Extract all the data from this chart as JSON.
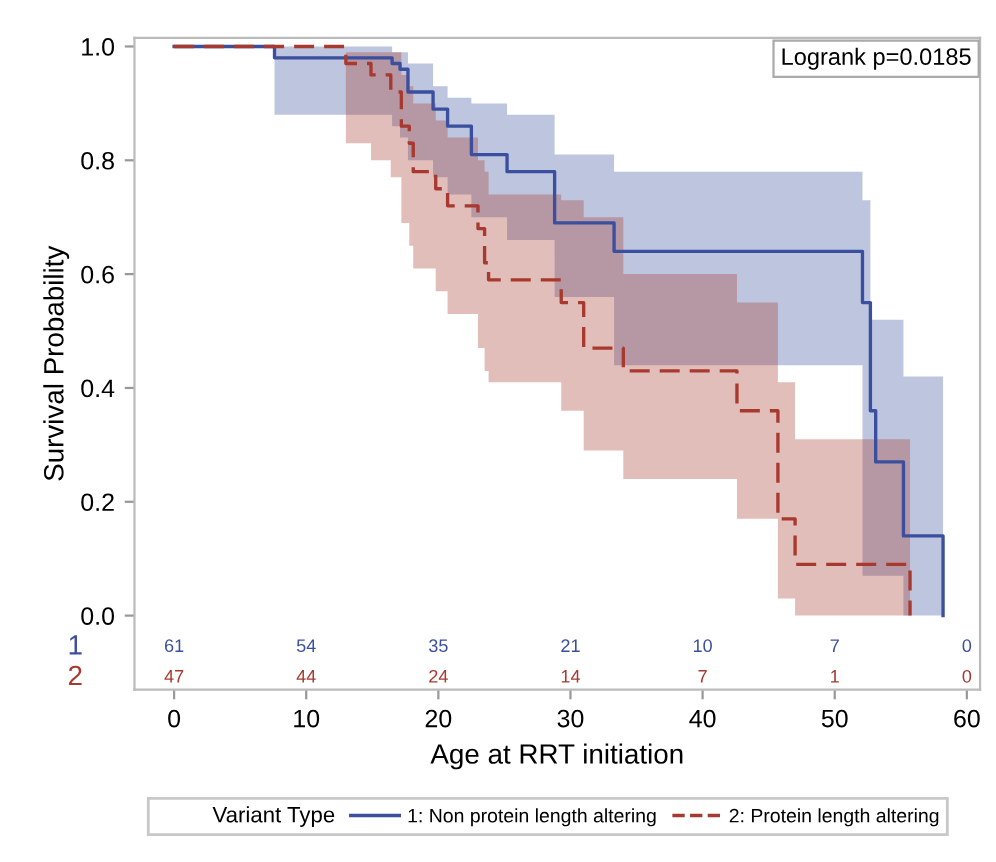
{
  "chart_data": {
    "type": "step",
    "xlabel": "Age at RRT initiation",
    "ylabel": "Survival Probability",
    "legend_title": "Variant Type",
    "xlim": [
      -3,
      61
    ],
    "xticks": [
      0,
      10,
      20,
      30,
      40,
      50,
      60
    ],
    "ylim": [
      -0.13,
      1.015
    ],
    "yticks": [
      {
        "value": 0,
        "label": "0.0"
      },
      0.2,
      0.4,
      0.6,
      0.8,
      {
        "value": 1,
        "label": "1.0"
      }
    ],
    "grid": false,
    "legend": "bottom",
    "series": [
      {
        "name": "1: Non protein length altering",
        "color": "#3a4f9e",
        "line_style": "solid",
        "x": [
          0,
          7.6,
          16.5,
          17.1,
          17.7,
          19.6,
          20.7,
          22.5,
          25.2,
          28.8,
          33.3,
          52.1,
          52.7,
          53.1,
          55.2,
          58.2
        ],
        "values": [
          1,
          0.98,
          0.97,
          0.96,
          0.92,
          0.89,
          0.86,
          0.81,
          0.78,
          0.69,
          0.64,
          0.55,
          0.36,
          0.27,
          0.14,
          0.0
        ],
        "lower": [
          1,
          0.88,
          0.86,
          0.84,
          0.8,
          0.77,
          0.74,
          0.7,
          0.66,
          0.56,
          0.44,
          0.07,
          0.07,
          0.07,
          0.0,
          0.0
        ],
        "upper": [
          1,
          1,
          0.99,
          0.99,
          0.97,
          0.93,
          0.91,
          0.9,
          0.88,
          0.81,
          0.78,
          0.73,
          0.52,
          0.52,
          0.42,
          0.0
        ]
      },
      {
        "name": "2: Protein length altering",
        "color": "#a8392f",
        "line_style": "dashed",
        "x": [
          0,
          13.0,
          14.9,
          16.4,
          17.2,
          17.8,
          18.1,
          19.8,
          20.7,
          23.0,
          23.5,
          23.8,
          29.3,
          31.0,
          34.0,
          42.6,
          45.7,
          47.0,
          55.7
        ],
        "values": [
          1,
          0.97,
          0.95,
          0.92,
          0.86,
          0.83,
          0.78,
          0.75,
          0.72,
          0.68,
          0.62,
          0.59,
          0.55,
          0.47,
          0.43,
          0.36,
          0.17,
          0.09,
          0.0
        ],
        "lower": [
          1,
          0.83,
          0.8,
          0.77,
          0.69,
          0.65,
          0.61,
          0.57,
          0.53,
          0.47,
          0.43,
          0.41,
          0.36,
          0.29,
          0.24,
          0.17,
          0.03,
          0.0,
          0.0
        ],
        "upper": [
          1,
          0.99,
          0.99,
          0.99,
          0.95,
          0.93,
          0.9,
          0.87,
          0.84,
          0.8,
          0.78,
          0.74,
          0.73,
          0.7,
          0.6,
          0.55,
          0.41,
          0.31,
          0.0
        ]
      }
    ],
    "annotations": [
      "Logrank p=0.0185",
      "1",
      "61",
      "54",
      "35",
      "21",
      "10",
      "7",
      "0",
      "2",
      "47",
      "44",
      "24",
      "14",
      "7",
      "1",
      "0"
    ]
  }
}
